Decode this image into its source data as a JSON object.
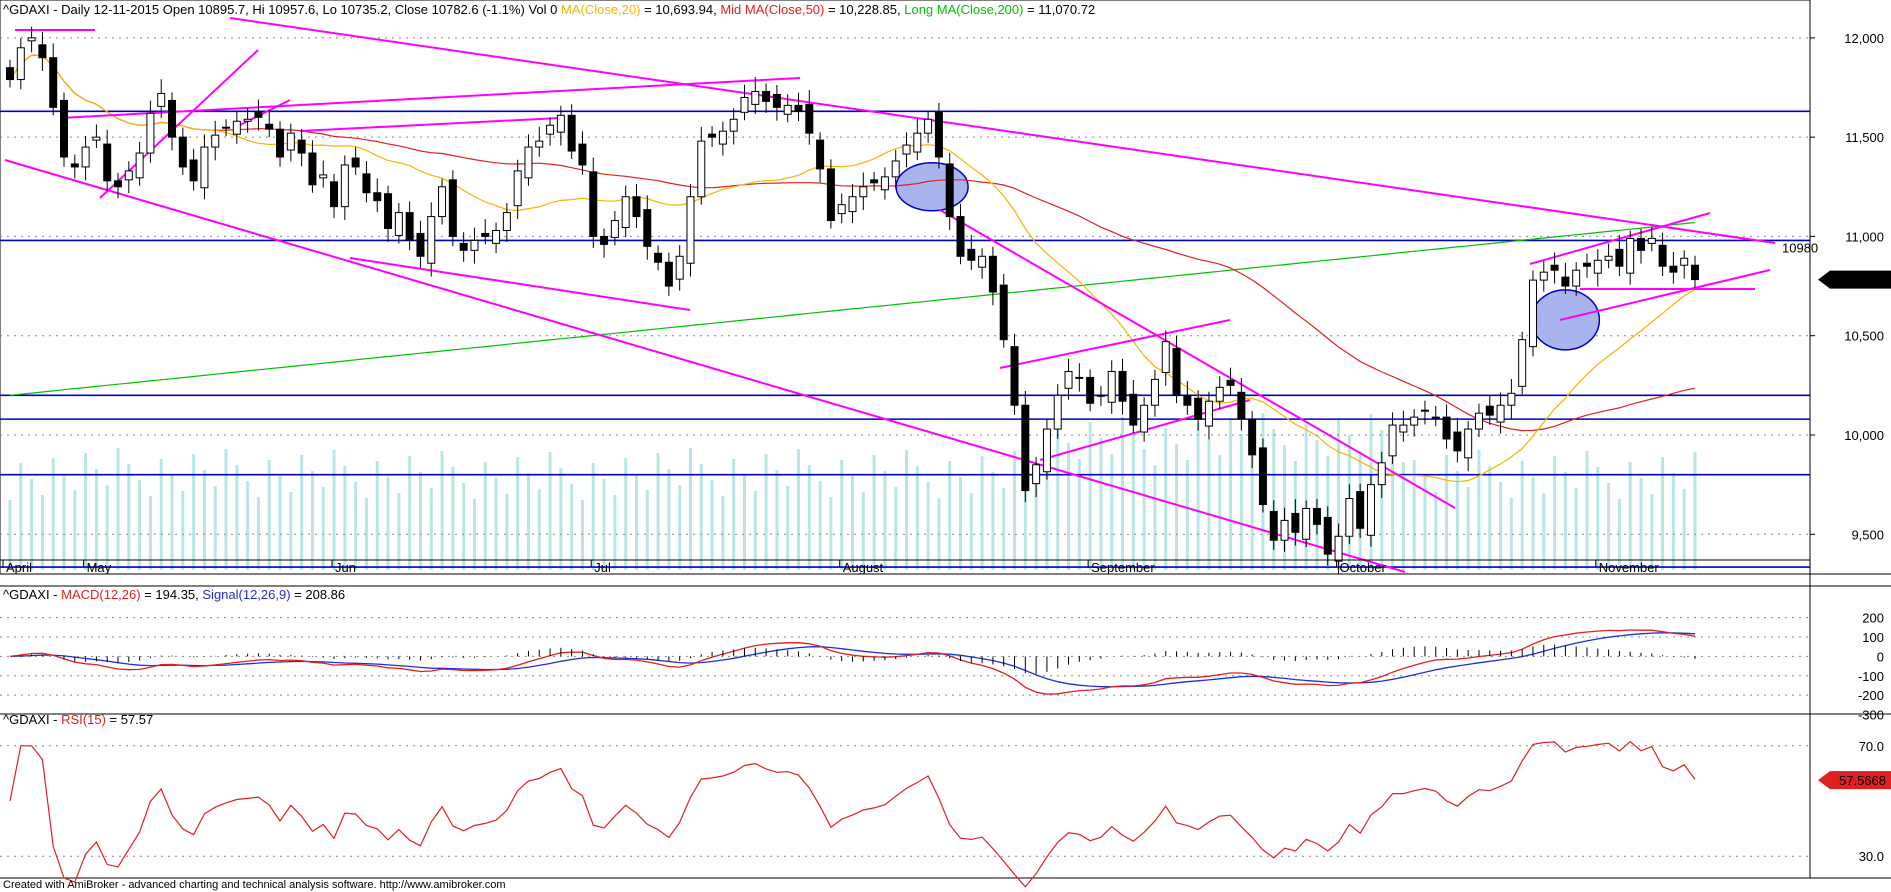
{
  "header": {
    "main_prefix": "^GDAXI - Daily 12-11-2015 Open 10895.7, Hi 10957.6, Lo 10735.2, Close 10782.6 (-1.1%) Vol 0 ",
    "ma20": "MA(Close,20)",
    "ma20_val": " = 10,693.94, ",
    "ma50": "Mid MA(Close,50)",
    "ma50_val": " = 10,228.85, ",
    "ma200": "Long MA(Close,200)",
    "ma200_val": " = 11,070.72",
    "macd_prefix": "^GDAXI - ",
    "macd_label": "MACD(12,26)",
    "macd_val": " = 194.35, ",
    "signal_label": "Signal(12,26,9)",
    "signal_val": " = 208.86",
    "rsi_prefix": "^GDAXI - ",
    "rsi_label": "RSI(15)",
    "rsi_val": " = 57.57"
  },
  "footer": "Created with AmiBroker - advanced charting and technical analysis software. http://www.amibroker.com",
  "colors": {
    "ma20": "#f5b400",
    "ma50": "#e02020",
    "ma200": "#00c000",
    "trend": "#ff00ff",
    "level": "#0000c0",
    "volume": "#b8e6e6",
    "macd": "#e02020",
    "signal": "#2030d0",
    "rsi": "#e02020",
    "ellipse": "#a8b4ee"
  },
  "chart_data": [
    {
      "type": "candlestick",
      "title": "^GDAXI - Daily 12-11-2015",
      "y_range": [
        9300,
        12100
      ],
      "y_ticks": [
        "12,000",
        "11,500",
        "11,000",
        "10,500",
        "10,000",
        "9,500"
      ],
      "months": [
        "April",
        "May",
        "Jun",
        "Jul",
        "August",
        "September",
        "October",
        "November"
      ],
      "horizontal_levels": [
        11630,
        10980,
        10200,
        10080,
        9800,
        9335
      ],
      "level_label": "10980",
      "last_close_label": "10,782.6",
      "closes": [
        11790,
        11950,
        12000,
        11900,
        11650,
        11400,
        11350,
        11450,
        11500,
        11280,
        11250,
        11330,
        11420,
        11620,
        11720,
        11500,
        11350,
        11280,
        11450,
        11510,
        11550,
        11580,
        11590,
        11600,
        11540,
        11400,
        11520,
        11420,
        11260,
        11310,
        11150,
        11360,
        11350,
        11220,
        11180,
        11040,
        11120,
        10980,
        10900,
        11100,
        11250,
        11000,
        10930,
        10980,
        11000,
        11030,
        11120,
        11330,
        11450,
        11480,
        11560,
        11610,
        11430,
        11360,
        11000,
        10960,
        11080,
        11200,
        11100,
        10950,
        10870,
        10750,
        10900,
        11200,
        11480,
        11500,
        11530,
        11590,
        11700,
        11730,
        11680,
        11650,
        11660,
        11630,
        11520,
        11340,
        11080,
        11160,
        11200,
        11250,
        11270,
        11300,
        11380,
        11460,
        11520,
        11590,
        11400,
        11100,
        10900,
        10880,
        10900,
        10720,
        10480,
        10150,
        9720,
        9850,
        10030,
        10200,
        10320,
        10290,
        10160,
        10200,
        10320,
        10170,
        10050,
        10150,
        10280,
        10470,
        10200,
        10150,
        10080,
        10170,
        10240,
        10250,
        10080,
        9900,
        9650,
        9470,
        9570,
        9510,
        9630,
        9550,
        9400,
        9490,
        9680,
        9530,
        9750,
        9860,
        10050,
        10050,
        10090,
        10120,
        10090,
        9980,
        9920,
        10030,
        10110,
        10100,
        10150,
        10210,
        10480,
        10780,
        10820,
        10830,
        10750,
        10830,
        10850,
        10880,
        10900,
        10850,
        10990,
        10930,
        10990,
        10850,
        10820,
        10890,
        10782.6
      ],
      "ma20_label": "MA(Close,20)",
      "ma20_value": "10,693.94",
      "ma50_label": "Mid MA(Close,50)",
      "ma50_value": "10,228.85",
      "ma200_label": "Long MA(Close,200)",
      "ma200_value": "11,070.72"
    },
    {
      "type": "line",
      "title": "^GDAXI - MACD(12,26)",
      "y_range": [
        -380,
        260
      ],
      "y_ticks": [
        "200",
        "100",
        "0",
        "-100",
        "-200",
        "-300"
      ],
      "series": [
        {
          "name": "MACD(12,26)",
          "last": 194.35
        },
        {
          "name": "Signal(12,26,9)",
          "last": 208.86
        }
      ]
    },
    {
      "type": "line",
      "title": "^GDAXI - RSI(15)",
      "y_range": [
        25,
        75
      ],
      "y_ticks": [
        "70.0",
        "30.0"
      ],
      "series": [
        {
          "name": "RSI(15)",
          "last": 57.57
        }
      ],
      "last_label": "57.5668"
    }
  ]
}
